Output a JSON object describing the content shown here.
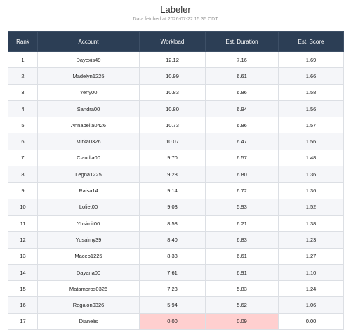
{
  "header": {
    "title": "Labeler",
    "subtitle": "Data fetched at 2026-07-22 15:35 CDT"
  },
  "table": {
    "columns": [
      "Rank",
      "Account",
      "Workload",
      "Est. Duration",
      "Est. Score"
    ],
    "rows": [
      [
        "1",
        "Dayexis49",
        "12.12",
        "7.16",
        "1.69"
      ],
      [
        "2",
        "Madelyn1225",
        "10.99",
        "6.61",
        "1.66"
      ],
      [
        "3",
        "Yeny00",
        "10.83",
        "6.86",
        "1.58"
      ],
      [
        "4",
        "Sandra00",
        "10.80",
        "6.94",
        "1.56"
      ],
      [
        "5",
        "Annabella0426",
        "10.73",
        "6.86",
        "1.57"
      ],
      [
        "6",
        "Mirka0326",
        "10.07",
        "6.47",
        "1.56"
      ],
      [
        "7",
        "Claudia00",
        "9.70",
        "6.57",
        "1.48"
      ],
      [
        "8",
        "Legna1225",
        "9.28",
        "6.80",
        "1.36"
      ],
      [
        "9",
        "Raisa14",
        "9.14",
        "6.72",
        "1.36"
      ],
      [
        "10",
        "Loliet00",
        "9.03",
        "5.93",
        "1.52"
      ],
      [
        "11",
        "Yusimit00",
        "8.58",
        "6.21",
        "1.38"
      ],
      [
        "12",
        "Yusaimy39",
        "8.40",
        "6.83",
        "1.23"
      ],
      [
        "13",
        "Maceo1225",
        "8.38",
        "6.61",
        "1.27"
      ],
      [
        "14",
        "Dayana00",
        "7.61",
        "6.91",
        "1.10"
      ],
      [
        "15",
        "Matamoros0326",
        "7.23",
        "5.83",
        "1.24"
      ],
      [
        "16",
        "Regalon0326",
        "5.94",
        "5.62",
        "1.06"
      ],
      [
        "17",
        "Dianelis",
        "0.00",
        "0.09",
        "0.00"
      ]
    ]
  }
}
